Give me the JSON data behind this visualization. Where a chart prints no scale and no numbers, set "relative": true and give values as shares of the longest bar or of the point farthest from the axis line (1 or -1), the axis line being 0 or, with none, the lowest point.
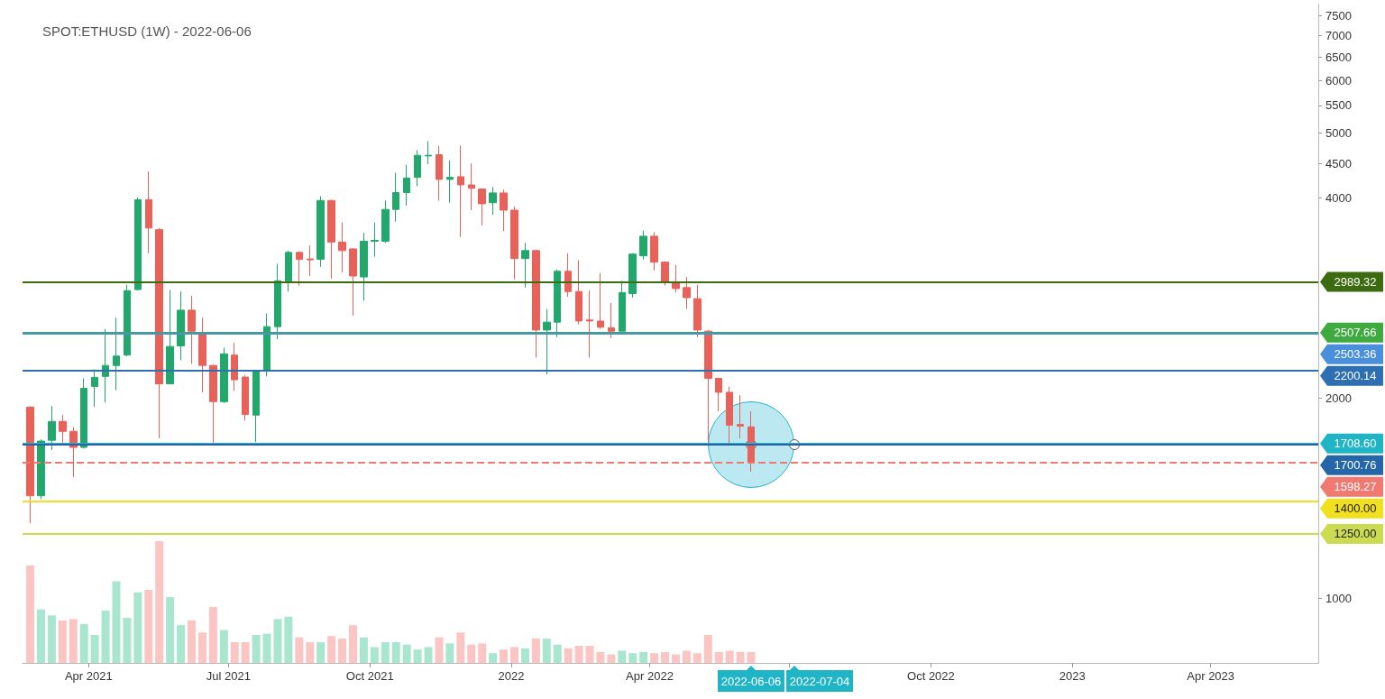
{
  "chart_data": [
    {
      "type": "candlestick",
      "title": "SPOT:ETHUSD (1W) - 2022-06-06",
      "x": [
        "2021-02-22",
        "2021-03-01",
        "2021-03-08",
        "2021-03-15",
        "2021-03-22",
        "2021-03-29",
        "2021-04-05",
        "2021-04-12",
        "2021-04-19",
        "2021-04-26",
        "2021-05-03",
        "2021-05-10",
        "2021-05-17",
        "2021-05-24",
        "2021-05-31",
        "2021-06-07",
        "2021-06-14",
        "2021-06-21",
        "2021-06-28",
        "2021-07-05",
        "2021-07-12",
        "2021-07-19",
        "2021-07-26",
        "2021-08-02",
        "2021-08-09",
        "2021-08-16",
        "2021-08-23",
        "2021-08-30",
        "2021-09-06",
        "2021-09-13",
        "2021-09-20",
        "2021-09-27",
        "2021-10-04",
        "2021-10-11",
        "2021-10-18",
        "2021-10-25",
        "2021-11-01",
        "2021-11-08",
        "2021-11-15",
        "2021-11-22",
        "2021-11-29",
        "2021-12-06",
        "2021-12-13",
        "2021-12-20",
        "2021-12-27",
        "2022-01-03",
        "2022-01-10",
        "2022-01-17",
        "2022-01-24",
        "2022-01-31",
        "2022-02-07",
        "2022-02-14",
        "2022-02-21",
        "2022-02-28",
        "2022-03-07",
        "2022-03-14",
        "2022-03-21",
        "2022-03-28",
        "2022-04-04",
        "2022-04-11",
        "2022-04-18",
        "2022-04-25",
        "2022-05-02",
        "2022-05-09",
        "2022-05-16",
        "2022-05-23",
        "2022-05-30",
        "2022-06-06"
      ],
      "ohlc": [
        [
          1938,
          1945,
          1297,
          1426
        ],
        [
          1426,
          1733,
          1410,
          1723
        ],
        [
          1728,
          1945,
          1670,
          1844
        ],
        [
          1844,
          1885,
          1712,
          1782
        ],
        [
          1782,
          1808,
          1521,
          1686
        ],
        [
          1686,
          2141,
          1680,
          2068
        ],
        [
          2082,
          2209,
          1938,
          2148
        ],
        [
          2155,
          2540,
          1970,
          2238
        ],
        [
          2238,
          2640,
          2055,
          2312
        ],
        [
          2320,
          2960,
          2310,
          2900
        ],
        [
          2910,
          4000,
          2900,
          3970
        ],
        [
          3970,
          4378,
          3300,
          3600
        ],
        [
          3580,
          3600,
          1740,
          2100
        ],
        [
          2100,
          2905,
          2100,
          2390
        ],
        [
          2395,
          2890,
          2280,
          2710
        ],
        [
          2710,
          2850,
          2250,
          2520
        ],
        [
          2495,
          2640,
          2040,
          2238
        ],
        [
          2238,
          2245,
          1700,
          1975
        ],
        [
          1975,
          2380,
          1965,
          2330
        ],
        [
          2320,
          2420,
          2050,
          2130
        ],
        [
          2150,
          2165,
          1850,
          1890
        ],
        [
          1885,
          2200,
          1717,
          2195
        ],
        [
          2195,
          2680,
          2155,
          2560
        ],
        [
          2560,
          3180,
          2450,
          3000
        ],
        [
          2995,
          3330,
          2890,
          3309
        ],
        [
          3309,
          3320,
          2950,
          3230
        ],
        [
          3235,
          3390,
          3050,
          3225
        ],
        [
          3230,
          4020,
          3150,
          3960
        ],
        [
          3960,
          3970,
          3020,
          3430
        ],
        [
          3430,
          3670,
          3090,
          3330
        ],
        [
          3350,
          3360,
          2660,
          3050
        ],
        [
          3040,
          3540,
          2800,
          3440
        ],
        [
          3440,
          3670,
          3260,
          3450
        ],
        [
          3440,
          3960,
          3420,
          3840
        ],
        [
          3840,
          4360,
          3680,
          4070
        ],
        [
          4070,
          4480,
          3890,
          4280
        ],
        [
          4290,
          4710,
          4160,
          4630
        ],
        [
          4620,
          4860,
          4490,
          4630
        ],
        [
          4640,
          4780,
          3960,
          4260
        ],
        [
          4260,
          4550,
          3930,
          4290
        ],
        [
          4300,
          4790,
          3490,
          4180
        ],
        [
          4180,
          4500,
          3830,
          4130
        ],
        [
          4120,
          4130,
          3633,
          3915
        ],
        [
          3930,
          4150,
          3770,
          4065
        ],
        [
          4065,
          4113,
          3560,
          3830
        ],
        [
          3830,
          3880,
          3014,
          3240
        ],
        [
          3240,
          3420,
          2930,
          3330
        ],
        [
          3330,
          3340,
          2300,
          2530
        ],
        [
          2530,
          2720,
          2170,
          2600
        ],
        [
          2600,
          3120,
          2470,
          3100
        ],
        [
          3100,
          3300,
          2840,
          2890
        ],
        [
          2890,
          3220,
          2580,
          2610
        ],
        [
          2620,
          2900,
          2300,
          2610
        ],
        [
          2610,
          3080,
          2540,
          2555
        ],
        [
          2550,
          2780,
          2460,
          2520
        ],
        [
          2520,
          3000,
          2520,
          2880
        ],
        [
          2870,
          3300,
          2830,
          3290
        ],
        [
          3270,
          3570,
          3230,
          3500
        ],
        [
          3500,
          3550,
          3110,
          3200
        ],
        [
          3200,
          3210,
          2950,
          2990
        ],
        [
          2990,
          3170,
          2880,
          2920
        ],
        [
          2930,
          3040,
          2720,
          2830
        ],
        [
          2820,
          2960,
          2470,
          2530
        ],
        [
          2520,
          2530,
          1710,
          2141
        ],
        [
          2141,
          2145,
          1910,
          2040
        ],
        [
          2040,
          2080,
          1700,
          1820
        ],
        [
          1825,
          2020,
          1740,
          1815
        ],
        [
          1810,
          1910,
          1550,
          1598.27
        ]
      ],
      "colors": [
        "#e8625a",
        "#22a86c",
        "#22a86c",
        "#e8625a",
        "#e8625a",
        "#22a86c",
        "#22a86c",
        "#22a86c",
        "#22a86c",
        "#22a86c",
        "#22a86c",
        "#e8625a",
        "#e8625a",
        "#22a86c",
        "#22a86c",
        "#e8625a",
        "#e8625a",
        "#e8625a",
        "#22a86c",
        "#e8625a",
        "#e8625a",
        "#22a86c",
        "#22a86c",
        "#22a86c",
        "#22a86c",
        "#e8625a",
        "#e8625a",
        "#22a86c",
        "#e8625a",
        "#e8625a",
        "#e8625a",
        "#22a86c",
        "#22a86c",
        "#22a86c",
        "#22a86c",
        "#22a86c",
        "#22a86c",
        "#22a86c",
        "#e8625a",
        "#22a86c",
        "#e8625a",
        "#e8625a",
        "#e8625a",
        "#22a86c",
        "#e8625a",
        "#e8625a",
        "#22a86c",
        "#e8625a",
        "#22a86c",
        "#22a86c",
        "#e8625a",
        "#e8625a",
        "#e8625a",
        "#e8625a",
        "#e8625a",
        "#22a86c",
        "#22a86c",
        "#22a86c",
        "#e8625a",
        "#e8625a",
        "#e8625a",
        "#e8625a",
        "#e8625a",
        "#e8625a",
        "#e8625a",
        "#e8625a",
        "#e8625a",
        "#e8625a"
      ],
      "xlim": [
        "2021-02-17",
        "2023-06-10"
      ],
      "xticks": [
        {
          "value": "2021-04-01",
          "label": "Apr 2021"
        },
        {
          "value": "2021-07-01",
          "label": "Jul 2021"
        },
        {
          "value": "2021-10-01",
          "label": "Oct 2021"
        },
        {
          "value": "2022-01-01",
          "label": "2022"
        },
        {
          "value": "2022-04-01",
          "label": "Apr 2022"
        },
        {
          "value": "2022-07-01",
          "label": null
        },
        {
          "value": "2022-10-01",
          "label": "Oct 2022"
        },
        {
          "value": "2023-01-01",
          "label": "2023"
        },
        {
          "value": "2023-04-01",
          "label": "Apr 2023"
        }
      ],
      "ylim": [
        800,
        7800
      ],
      "yticks": [
        1000,
        2000,
        4000,
        4500,
        5000,
        5500,
        6000,
        6500,
        7000,
        7500
      ],
      "log": "y",
      "ref_lines": [
        {
          "axis": "y",
          "value": 2989.32,
          "label": "2989.32",
          "color": "#3d6b10",
          "line_style": "solid"
        },
        {
          "axis": "y",
          "value": 2507.66,
          "label": "2507.66",
          "color": "#3faa3f",
          "line_style": "solid"
        },
        {
          "axis": "y",
          "value": 2503.36,
          "label": "2503.36",
          "color": "#4a8fdc",
          "line_style": "solid"
        },
        {
          "axis": "y",
          "value": 2200.14,
          "label": "2200.14",
          "color": "#2d6fb0",
          "line_style": "solid"
        },
        {
          "axis": "y",
          "value": 1708.6,
          "label": "1708.60",
          "color": "#1fb5c6",
          "line_style": "solid"
        },
        {
          "axis": "y",
          "value": 1700.76,
          "label": "1700.76",
          "color": "#2466a8",
          "line_style": "solid"
        },
        {
          "axis": "y",
          "value": 1598.27,
          "label": "1598.27",
          "color": "#f07a72",
          "line_style": "dashed"
        },
        {
          "axis": "y",
          "value": 1400,
          "label": "1400.00",
          "color": "#f0e020",
          "line_style": "solid"
        },
        {
          "axis": "y",
          "value": 1250,
          "label": "1250.00",
          "color": "#cddb52",
          "line_style": "solid"
        }
      ],
      "annotations": [
        "2022-06-06",
        "2022-07-04"
      ]
    },
    {
      "type": "bar",
      "relative": true,
      "x": [
        "2021-02-22",
        "2021-03-01",
        "2021-03-08",
        "2021-03-15",
        "2021-03-22",
        "2021-03-29",
        "2021-04-05",
        "2021-04-12",
        "2021-04-19",
        "2021-04-26",
        "2021-05-03",
        "2021-05-10",
        "2021-05-17",
        "2021-05-24",
        "2021-05-31",
        "2021-06-07",
        "2021-06-14",
        "2021-06-21",
        "2021-06-28",
        "2021-07-05",
        "2021-07-12",
        "2021-07-19",
        "2021-07-26",
        "2021-08-02",
        "2021-08-09",
        "2021-08-16",
        "2021-08-23",
        "2021-08-30",
        "2021-09-06",
        "2021-09-13",
        "2021-09-20",
        "2021-09-27",
        "2021-10-04",
        "2021-10-11",
        "2021-10-18",
        "2021-10-25",
        "2021-11-01",
        "2021-11-08",
        "2021-11-15",
        "2021-11-22",
        "2021-11-29",
        "2021-12-06",
        "2021-12-13",
        "2021-12-20",
        "2021-12-27",
        "2022-01-03",
        "2022-01-10",
        "2022-01-17",
        "2022-01-24",
        "2022-01-31",
        "2022-02-07",
        "2022-02-14",
        "2022-02-21",
        "2022-02-28",
        "2022-03-07",
        "2022-03-14",
        "2022-03-21",
        "2022-03-28",
        "2022-04-04",
        "2022-04-11",
        "2022-04-18",
        "2022-04-25",
        "2022-05-02",
        "2022-05-09",
        "2022-05-16",
        "2022-05-23",
        "2022-05-30",
        "2022-06-06"
      ],
      "values": [
        0.8,
        0.44,
        0.39,
        0.35,
        0.36,
        0.32,
        0.23,
        0.43,
        0.67,
        0.37,
        0.58,
        0.6,
        1,
        0.54,
        0.31,
        0.35,
        0.25,
        0.46,
        0.27,
        0.17,
        0.17,
        0.23,
        0.24,
        0.36,
        0.38,
        0.21,
        0.17,
        0.17,
        0.22,
        0.2,
        0.31,
        0.21,
        0.13,
        0.17,
        0.17,
        0.15,
        0.11,
        0.13,
        0.21,
        0.16,
        0.25,
        0.15,
        0.16,
        0.08,
        0.11,
        0.13,
        0.12,
        0.2,
        0.2,
        0.15,
        0.12,
        0.14,
        0.14,
        0.09,
        0.07,
        0.1,
        0.08,
        0.09,
        0.08,
        0.09,
        0.07,
        0.1,
        0.08,
        0.23,
        0.09,
        0.1,
        0.09,
        0.09
      ],
      "colors": [
        "#fbc5c3",
        "#a8e6cf",
        "#a8e6cf",
        "#fbc5c3",
        "#fbc5c3",
        "#a8e6cf",
        "#a8e6cf",
        "#a8e6cf",
        "#a8e6cf",
        "#a8e6cf",
        "#a8e6cf",
        "#fbc5c3",
        "#fbc5c3",
        "#a8e6cf",
        "#a8e6cf",
        "#fbc5c3",
        "#fbc5c3",
        "#fbc5c3",
        "#a8e6cf",
        "#fbc5c3",
        "#fbc5c3",
        "#a8e6cf",
        "#a8e6cf",
        "#a8e6cf",
        "#a8e6cf",
        "#fbc5c3",
        "#fbc5c3",
        "#a8e6cf",
        "#fbc5c3",
        "#fbc5c3",
        "#fbc5c3",
        "#a8e6cf",
        "#a8e6cf",
        "#a8e6cf",
        "#a8e6cf",
        "#a8e6cf",
        "#a8e6cf",
        "#a8e6cf",
        "#fbc5c3",
        "#a8e6cf",
        "#fbc5c3",
        "#fbc5c3",
        "#fbc5c3",
        "#a8e6cf",
        "#fbc5c3",
        "#fbc5c3",
        "#a8e6cf",
        "#fbc5c3",
        "#a8e6cf",
        "#a8e6cf",
        "#fbc5c3",
        "#fbc5c3",
        "#fbc5c3",
        "#fbc5c3",
        "#fbc5c3",
        "#a8e6cf",
        "#a8e6cf",
        "#a8e6cf",
        "#fbc5c3",
        "#fbc5c3",
        "#fbc5c3",
        "#fbc5c3",
        "#fbc5c3",
        "#fbc5c3",
        "#fbc5c3",
        "#fbc5c3",
        "#fbc5c3",
        "#fbc5c3"
      ],
      "xlim": [
        "2021-02-17",
        "2023-06-10"
      ]
    }
  ]
}
